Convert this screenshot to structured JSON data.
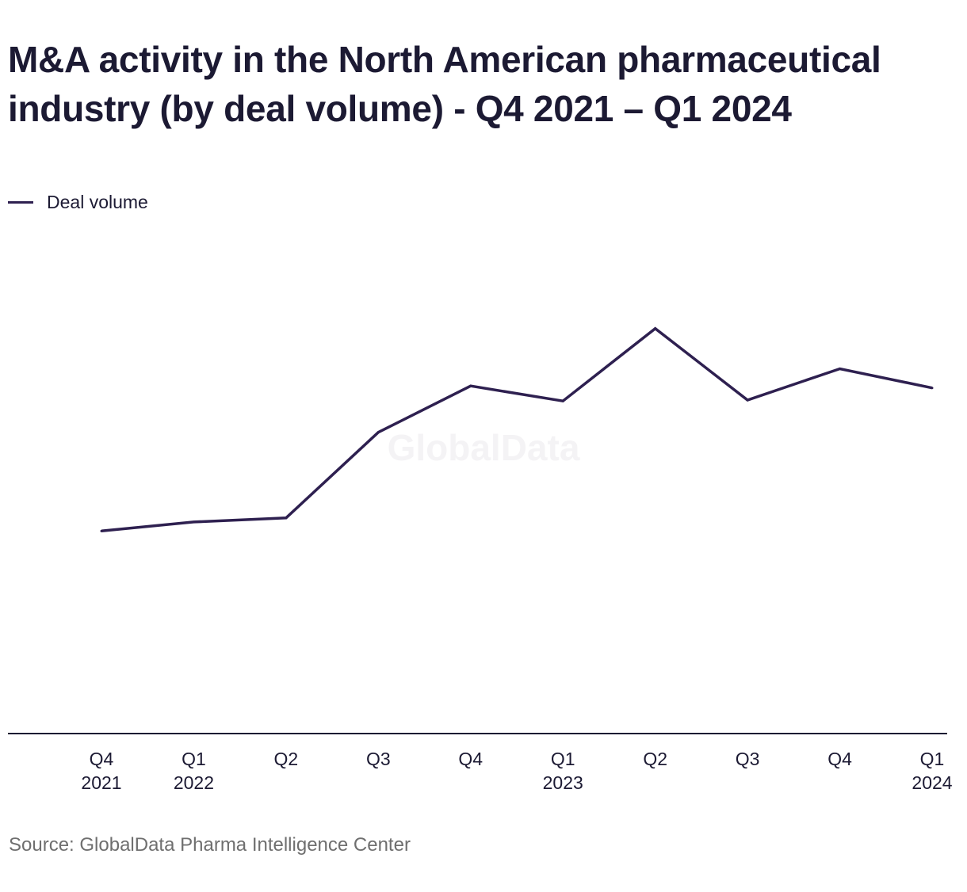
{
  "title": "M&A activity in the North American pharmaceutical industry (by deal volume) - Q4 2021 – Q1 2024",
  "legend": {
    "label": "Deal volume"
  },
  "watermark": "GlobalData",
  "source": "Source: GlobalData Pharma Intelligence Center",
  "colors": {
    "line": "#2e2050",
    "axis": "#1c1a33",
    "title": "#1c1a33",
    "source": "#6f6f6f",
    "watermark": "#f4f3f5"
  },
  "chart_data": {
    "type": "line",
    "title": "M&A activity in the North American pharmaceutical industry (by deal volume) - Q4 2021 – Q1 2024",
    "categories": [
      {
        "line1": "Q4",
        "line2": "2021"
      },
      {
        "line1": "Q1",
        "line2": "2022"
      },
      {
        "line1": "Q2",
        "line2": ""
      },
      {
        "line1": "Q3",
        "line2": ""
      },
      {
        "line1": "Q4",
        "line2": ""
      },
      {
        "line1": "Q1",
        "line2": "2023"
      },
      {
        "line1": "Q2",
        "line2": ""
      },
      {
        "line1": "Q3",
        "line2": ""
      },
      {
        "line1": "Q4",
        "line2": ""
      },
      {
        "line1": "Q1",
        "line2": "2024"
      }
    ],
    "series": [
      {
        "name": "Deal volume",
        "values": [
          201,
          210,
          214,
          299,
          345,
          330,
          402,
          331,
          362,
          343
        ]
      }
    ],
    "ylim": [
      0,
      500
    ],
    "y_axis_shown": false,
    "grid": false,
    "legend_position": "top-left"
  }
}
